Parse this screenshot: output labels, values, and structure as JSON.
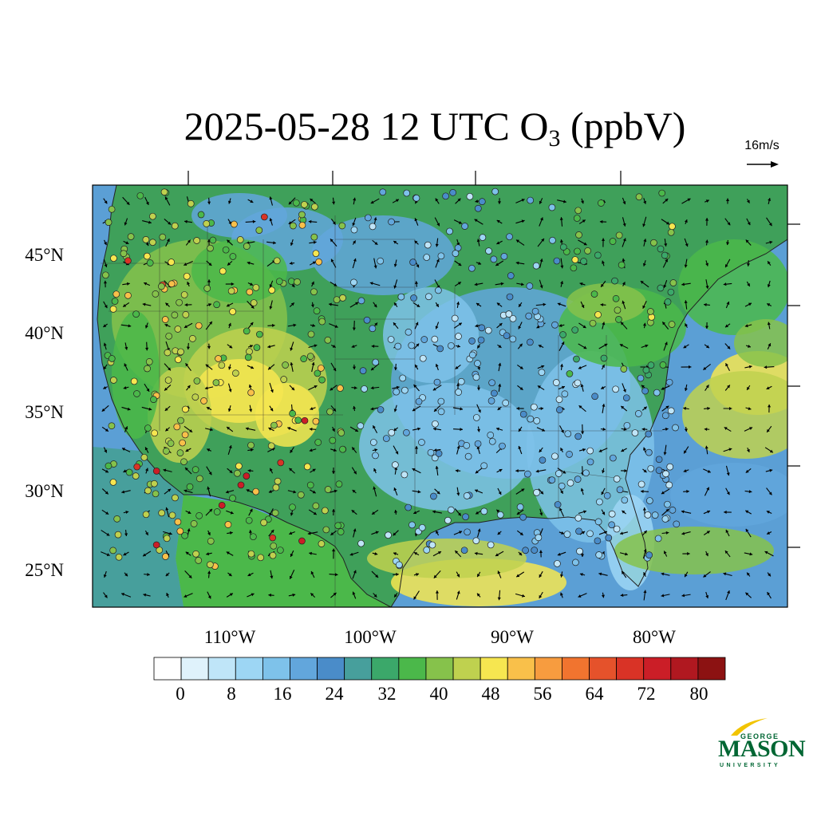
{
  "title": {
    "prefix": "2025-05-28 12 UTC O",
    "subscript": "3",
    "suffix": " (ppbV)"
  },
  "reference_vector": {
    "label": "16m/s"
  },
  "axes": {
    "lat_labels": [
      "45°N",
      "40°N",
      "35°N",
      "30°N",
      "25°N"
    ],
    "lon_labels": [
      "110°W",
      "100°W",
      "90°W",
      "80°W"
    ]
  },
  "colorbar": {
    "tick_labels": [
      "0",
      "8",
      "16",
      "24",
      "32",
      "40",
      "48",
      "56",
      "64",
      "72",
      "80"
    ],
    "colors": [
      "#ffffff",
      "#dff2fb",
      "#bfe5f8",
      "#9dd6f4",
      "#7ec2ea",
      "#62a6dc",
      "#4a8cc9",
      "#479f9c",
      "#3ba86a",
      "#4bb84a",
      "#86c24b",
      "#bfd14f",
      "#f6e650",
      "#f9c04a",
      "#f79c3f",
      "#f1742f",
      "#e5522b",
      "#d93326",
      "#cb1e27",
      "#b01820",
      "#8c1212"
    ]
  },
  "logo": {
    "line1": "GEORGE",
    "line2": "MASON",
    "line3": "UNIVERSITY"
  },
  "colors": {
    "background_ocean": "#5b9fd5",
    "land_base": "#3fa05a",
    "accent_logo": "#006633"
  }
}
